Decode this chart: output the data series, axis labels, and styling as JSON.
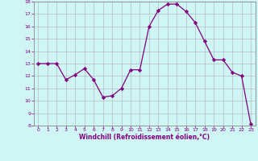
{
  "x": [
    0,
    1,
    2,
    3,
    4,
    5,
    6,
    7,
    8,
    9,
    10,
    11,
    12,
    13,
    14,
    15,
    16,
    17,
    18,
    19,
    20,
    21,
    22,
    23
  ],
  "y": [
    13.0,
    13.0,
    13.0,
    11.7,
    12.1,
    12.6,
    11.7,
    10.3,
    10.4,
    11.0,
    12.5,
    12.5,
    16.0,
    17.3,
    17.8,
    17.8,
    17.2,
    16.3,
    14.8,
    13.3,
    13.3,
    12.3,
    12.0,
    8.1
  ],
  "line_color": "#800080",
  "marker": "D",
  "markersize": 2.2,
  "linewidth": 0.9,
  "bg_color": "#cff5f5",
  "grid_color": "#b0b0b0",
  "xlabel": "Windchill (Refroidissement éolien,°C)",
  "xlabel_color": "#800080",
  "tick_color": "#800080",
  "ylim": [
    8,
    18
  ],
  "xlim_min": -0.5,
  "xlim_max": 23.5,
  "yticks": [
    8,
    9,
    10,
    11,
    12,
    13,
    14,
    15,
    16,
    17,
    18
  ],
  "xticks": [
    0,
    1,
    2,
    3,
    4,
    5,
    6,
    7,
    8,
    9,
    10,
    11,
    12,
    13,
    14,
    15,
    16,
    17,
    18,
    19,
    20,
    21,
    22,
    23
  ]
}
